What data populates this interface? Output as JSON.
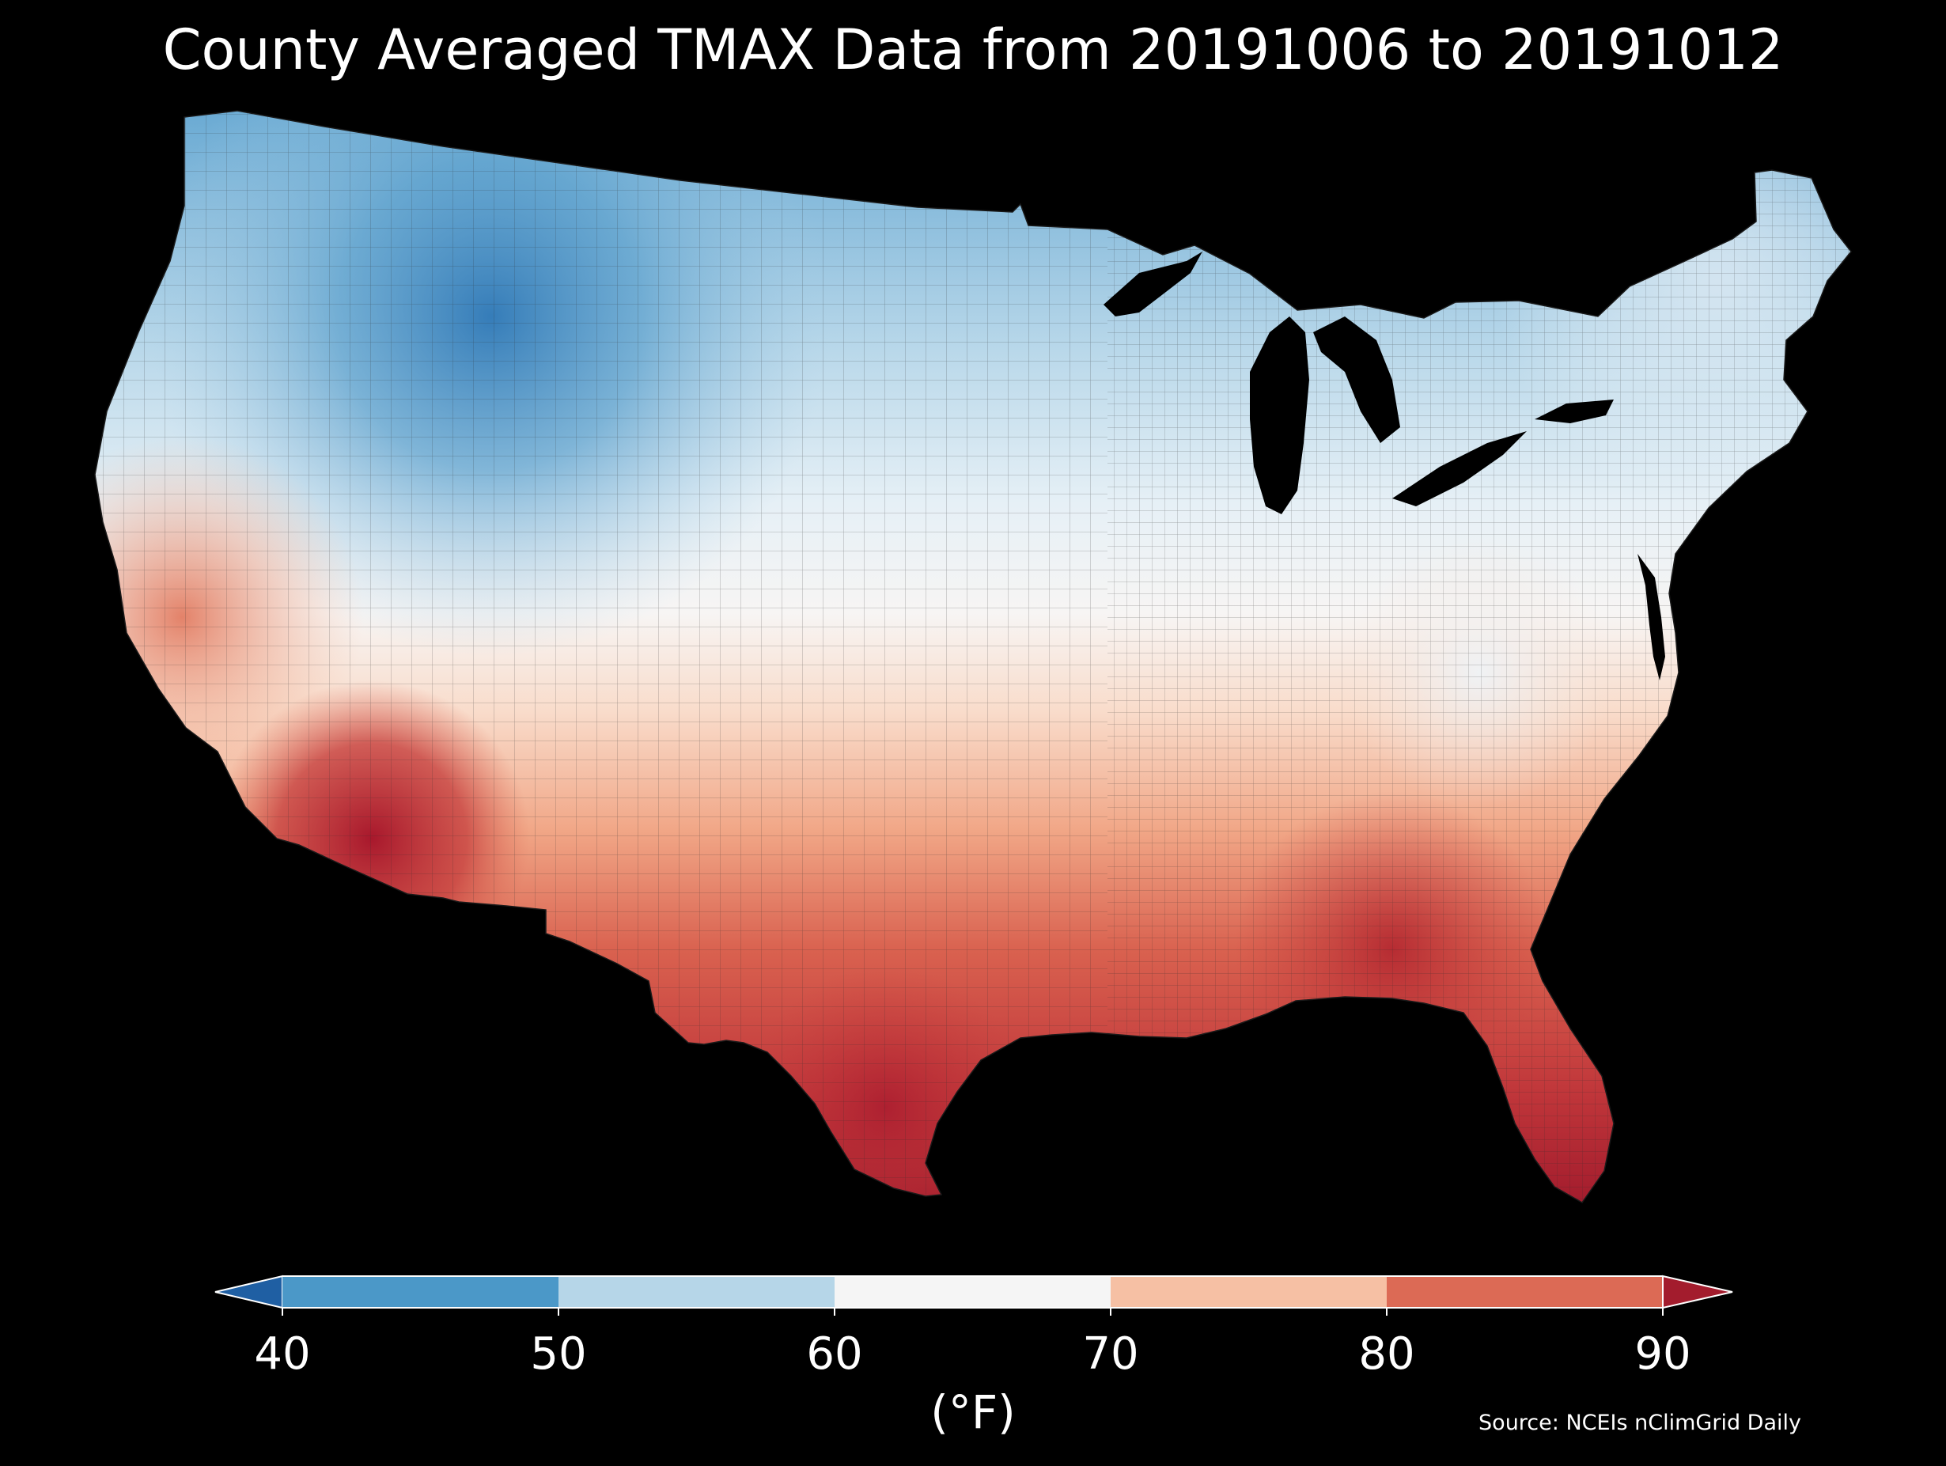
{
  "title": "County Averaged TMAX Data from 20191006 to 20191012",
  "colorbar": {
    "ticks": [
      "40",
      "50",
      "60",
      "70",
      "80",
      "90"
    ],
    "unit": "(°F)",
    "bins": [
      {
        "from": null,
        "to": 40,
        "color": "#1f5fa3"
      },
      {
        "from": 40,
        "to": 50,
        "color": "#4b98c8"
      },
      {
        "from": 50,
        "to": 60,
        "color": "#b6d6e8"
      },
      {
        "from": 60,
        "to": 70,
        "color": "#f5f5f5"
      },
      {
        "from": 70,
        "to": 80,
        "color": "#f6c0a4"
      },
      {
        "from": 80,
        "to": 90,
        "color": "#dc6a55"
      },
      {
        "from": 90,
        "to": null,
        "color": "#a31c2d"
      }
    ],
    "extend": "both"
  },
  "source": "Source: NCEIs nClimGrid Daily",
  "map": {
    "region": "Contiguous United States",
    "unit_of_area": "county",
    "variable": "TMAX",
    "background": "#000000",
    "water_color": "#000000"
  }
}
